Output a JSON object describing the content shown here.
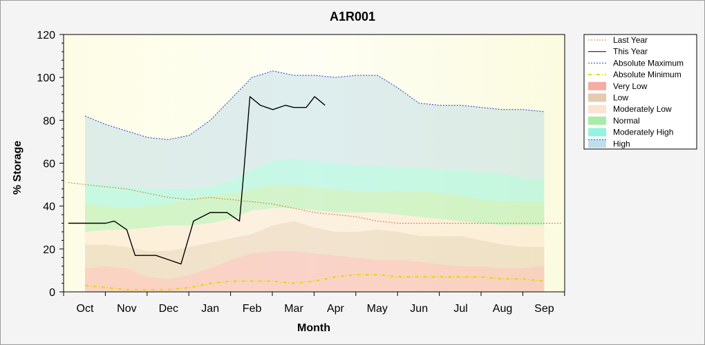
{
  "chart_data": {
    "type": "area",
    "title": "A1R001",
    "xlabel": "Month",
    "ylabel": "% Storage",
    "ylim": [
      0,
      120
    ],
    "yticks": [
      "0",
      "20",
      "40",
      "60",
      "80",
      "100",
      "120"
    ],
    "categories": [
      "Oct",
      "Nov",
      "Dec",
      "Jan",
      "Feb",
      "Mar",
      "Apr",
      "May",
      "Jun",
      "Jul",
      "Aug",
      "Sep"
    ],
    "legend_position": "right",
    "grid": false,
    "percentile_bands": {
      "x": [
        0,
        0.5,
        1,
        1.5,
        2,
        2.5,
        3,
        3.5,
        4,
        4.5,
        5,
        5.5,
        6,
        6.5,
        7,
        7.5,
        8,
        8.5,
        9,
        9.5,
        10,
        10.5,
        11
      ],
      "very_low_top": [
        11,
        12,
        11,
        7,
        6,
        8,
        11,
        15,
        18,
        19,
        19,
        18,
        17,
        16,
        15,
        15,
        14,
        13,
        12,
        12,
        11,
        11,
        12
      ],
      "low_top": [
        22,
        22,
        21,
        19,
        19,
        21,
        23,
        25,
        27,
        31,
        33,
        30,
        28,
        28,
        29,
        28,
        26,
        26,
        26,
        24,
        22,
        21,
        21
      ],
      "moderately_low_top": [
        28,
        29,
        29,
        30,
        31,
        31,
        32,
        34,
        38,
        39,
        39,
        38,
        37,
        37,
        37,
        36,
        35,
        34,
        33,
        32,
        31,
        31,
        31
      ],
      "normal_top": [
        41,
        40,
        39,
        40,
        41,
        43,
        45,
        46,
        48,
        50,
        50,
        49,
        48,
        47,
        47,
        47,
        47,
        46,
        45,
        43,
        42,
        42,
        42
      ],
      "moderately_high_top": [
        51,
        50,
        49,
        48,
        48,
        48,
        49,
        52,
        57,
        61,
        62,
        61,
        60,
        59,
        59,
        58,
        58,
        57,
        57,
        56,
        55,
        53,
        52
      ],
      "high_top": [
        82,
        78,
        75,
        72,
        71,
        73,
        80,
        90,
        100,
        103,
        101,
        101,
        100,
        101,
        101,
        95,
        88,
        87,
        87,
        86,
        85,
        85,
        84
      ]
    },
    "series": [
      {
        "name": "Last Year",
        "color": "#d07a3a",
        "style": "dotted",
        "x": [
          -0.4,
          0,
          0.5,
          1,
          1.5,
          2,
          2.5,
          3,
          3.5,
          4,
          4.5,
          5,
          5.5,
          6,
          6.5,
          7,
          7.5,
          8,
          8.5,
          9,
          9.5,
          10,
          10.5,
          11,
          11.4
        ],
        "y": [
          51,
          50,
          49,
          48,
          46,
          44,
          43,
          44,
          43,
          42,
          41,
          39,
          37,
          36,
          35,
          33,
          32,
          32,
          32,
          32,
          32,
          32,
          32,
          32,
          32
        ]
      },
      {
        "name": "This Year",
        "color": "#000000",
        "style": "solid",
        "x": [
          -0.4,
          0,
          0.5,
          0.7,
          1,
          1.2,
          1.5,
          1.7,
          2,
          2.3,
          2.6,
          3,
          3.4,
          3.7,
          3.8,
          3.95,
          4.2,
          4.5,
          4.8,
          5,
          5.3,
          5.5,
          5.75
        ],
        "y": [
          32,
          32,
          32,
          33,
          29,
          17,
          17,
          17,
          15,
          13,
          33,
          37,
          37,
          33,
          55,
          91,
          87,
          85,
          87,
          86,
          86,
          91,
          87
        ]
      },
      {
        "name": "Absolute Maximum",
        "color": "#1a3bd8",
        "style": "dotted",
        "x": [
          0,
          0.5,
          1,
          1.5,
          2,
          2.5,
          3,
          3.5,
          4,
          4.5,
          5,
          5.5,
          6,
          6.5,
          7,
          7.5,
          8,
          8.5,
          9,
          9.5,
          10,
          10.5,
          11
        ],
        "y": [
          82,
          78,
          75,
          72,
          71,
          73,
          80,
          90,
          100,
          103,
          101,
          101,
          100,
          101,
          101,
          95,
          88,
          87,
          87,
          86,
          85,
          85,
          84
        ]
      },
      {
        "name": "Absolute Minimum",
        "color": "#e7d800",
        "style": "dashdot",
        "x": [
          0,
          0.5,
          1,
          1.5,
          2,
          2.5,
          3,
          3.5,
          4,
          4.5,
          5,
          5.5,
          6,
          6.5,
          7,
          7.5,
          8,
          8.5,
          9,
          9.5,
          10,
          10.5,
          11
        ],
        "y": [
          3,
          2,
          1,
          1,
          1,
          2,
          4,
          5,
          5,
          5,
          4,
          5,
          7,
          8,
          8,
          7,
          7,
          7,
          7,
          7,
          6,
          6,
          5
        ]
      }
    ],
    "bands": [
      {
        "name": "Very Low",
        "color": "#f48f84"
      },
      {
        "name": "Low",
        "color": "#ddb894"
      },
      {
        "name": "Moderately Low",
        "color": "#fbd9c0"
      },
      {
        "name": "Normal",
        "color": "#8fe48c"
      },
      {
        "name": "Moderately High",
        "color": "#6ff0d6"
      },
      {
        "name": "High",
        "color": "#aad3e6"
      }
    ]
  }
}
